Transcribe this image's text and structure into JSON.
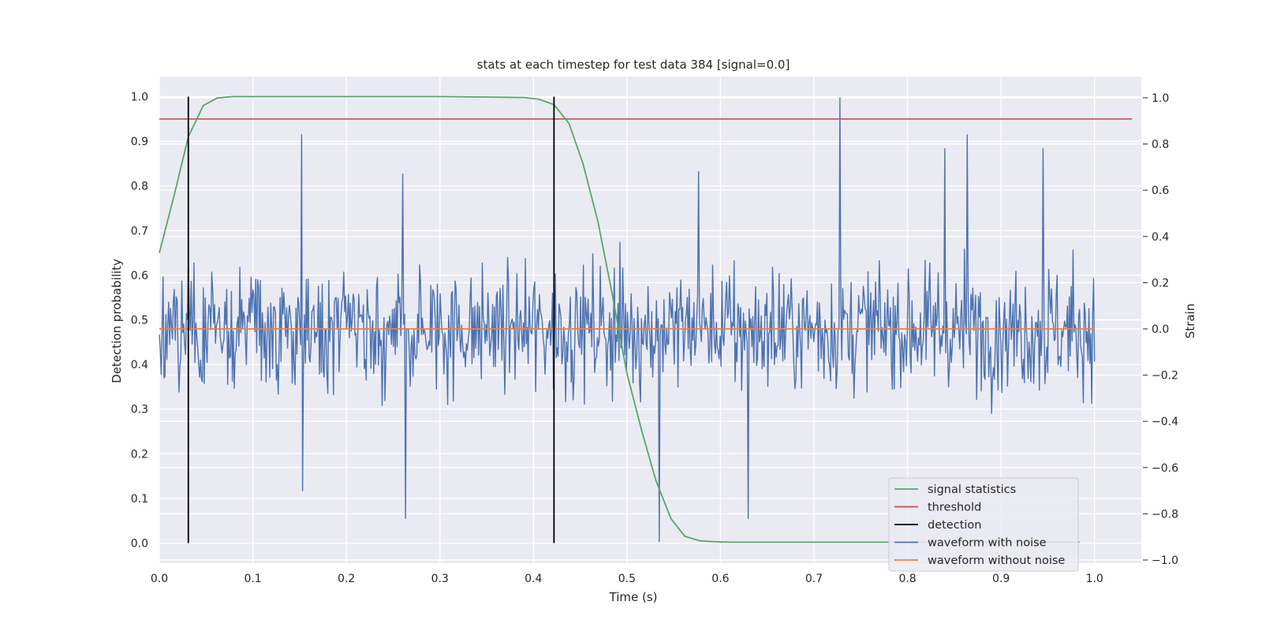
{
  "chart_data": {
    "type": "line",
    "title": "stats at each timestep for test data 384 [signal=0.0]",
    "xlabel": "Time (s)",
    "ylabel_left": "Detection probability",
    "ylabel_right": "Strain",
    "xlim": [
      0.0,
      1.05
    ],
    "ylim_left": [
      -0.045,
      1.045
    ],
    "ylim_right": [
      -1.0,
      1.0
    ],
    "x_ticks": [
      0.0,
      0.1,
      0.2,
      0.3,
      0.4,
      0.5,
      0.6,
      0.7,
      0.8,
      0.9,
      1.0
    ],
    "x_tick_labels": [
      "0.0",
      "0.1",
      "0.2",
      "0.3",
      "0.4",
      "0.5",
      "0.6",
      "0.7",
      "0.8",
      "0.9",
      "1.0"
    ],
    "y_left_ticks": [
      0.0,
      0.1,
      0.2,
      0.3,
      0.4,
      0.5,
      0.6,
      0.7,
      0.8,
      0.9,
      1.0
    ],
    "y_left_tick_labels": [
      "0.0",
      "0.1",
      "0.2",
      "0.3",
      "0.4",
      "0.5",
      "0.6",
      "0.7",
      "0.8",
      "0.9",
      "1.0"
    ],
    "y_right_ticks": [
      -1.0,
      -0.8,
      -0.6,
      -0.4,
      -0.2,
      0.0,
      0.2,
      0.4,
      0.6,
      0.8,
      1.0
    ],
    "y_right_tick_labels": [
      "−1.0",
      "−0.8",
      "−0.6",
      "−0.4",
      "−0.2",
      "0.0",
      "0.2",
      "0.4",
      "0.6",
      "0.8",
      "1.0"
    ],
    "grid": true,
    "legend_position": "lower-right",
    "colors": {
      "plot_background": "#eaeaf2",
      "grid": "#ffffff",
      "signal_statistics": "#55a868",
      "threshold": "#c44e52",
      "detection": "#000000",
      "waveform_with_noise": "#4c72b0",
      "waveform_without_noise": "#dd8452"
    },
    "series": [
      {
        "name": "signal statistics",
        "axis": "left",
        "x": [
          0.0,
          0.016,
          0.031,
          0.047,
          0.062,
          0.078,
          0.094,
          0.11,
          0.3,
          0.39,
          0.406,
          0.422,
          0.438,
          0.453,
          0.469,
          0.484,
          0.5,
          0.516,
          0.531,
          0.547,
          0.562,
          0.578,
          0.594,
          0.61,
          0.7,
          0.8,
          0.9,
          0.984
        ],
        "values": [
          0.65,
          0.78,
          0.91,
          0.98,
          0.997,
          1.0,
          1.0,
          1.0,
          1.0,
          0.998,
          0.994,
          0.982,
          0.94,
          0.85,
          0.72,
          0.56,
          0.38,
          0.25,
          0.14,
          0.055,
          0.015,
          0.005,
          0.003,
          0.002,
          0.002,
          0.002,
          0.002,
          0.002
        ]
      },
      {
        "name": "threshold",
        "axis": "left",
        "x": [
          0.0,
          1.04
        ],
        "values": [
          0.95,
          0.95
        ]
      },
      {
        "name": "detection",
        "axis": "left",
        "x": [
          0.031,
          0.422
        ],
        "y_range": [
          0.0,
          1.0
        ]
      },
      {
        "name": "waveform with noise",
        "axis": "right",
        "description": "noisy strain, ~1000 samples over 0.0–1.0 s, mostly within ±0.5, peaks at 1.0 (t≈0.728) and min −0.92 (t≈0.535)",
        "x_range": [
          0.0,
          1.0
        ],
        "samples": 1000,
        "peaks": [
          {
            "x": 0.152,
            "value": 0.84
          },
          {
            "x": 0.26,
            "value": 0.67
          },
          {
            "x": 0.263,
            "value": -0.82
          },
          {
            "x": 0.535,
            "value": -0.92
          },
          {
            "x": 0.577,
            "value": 0.68
          },
          {
            "x": 0.63,
            "value": -0.82
          },
          {
            "x": 0.728,
            "value": 1.0
          },
          {
            "x": 0.864,
            "value": 0.84
          },
          {
            "x": 0.84,
            "value": 0.78
          },
          {
            "x": 0.945,
            "value": 0.78
          },
          {
            "x": 0.153,
            "value": -0.7
          }
        ]
      },
      {
        "name": "waveform without noise",
        "axis": "right",
        "x": [
          0.0,
          1.0
        ],
        "values": [
          0.0,
          0.0
        ]
      }
    ]
  }
}
